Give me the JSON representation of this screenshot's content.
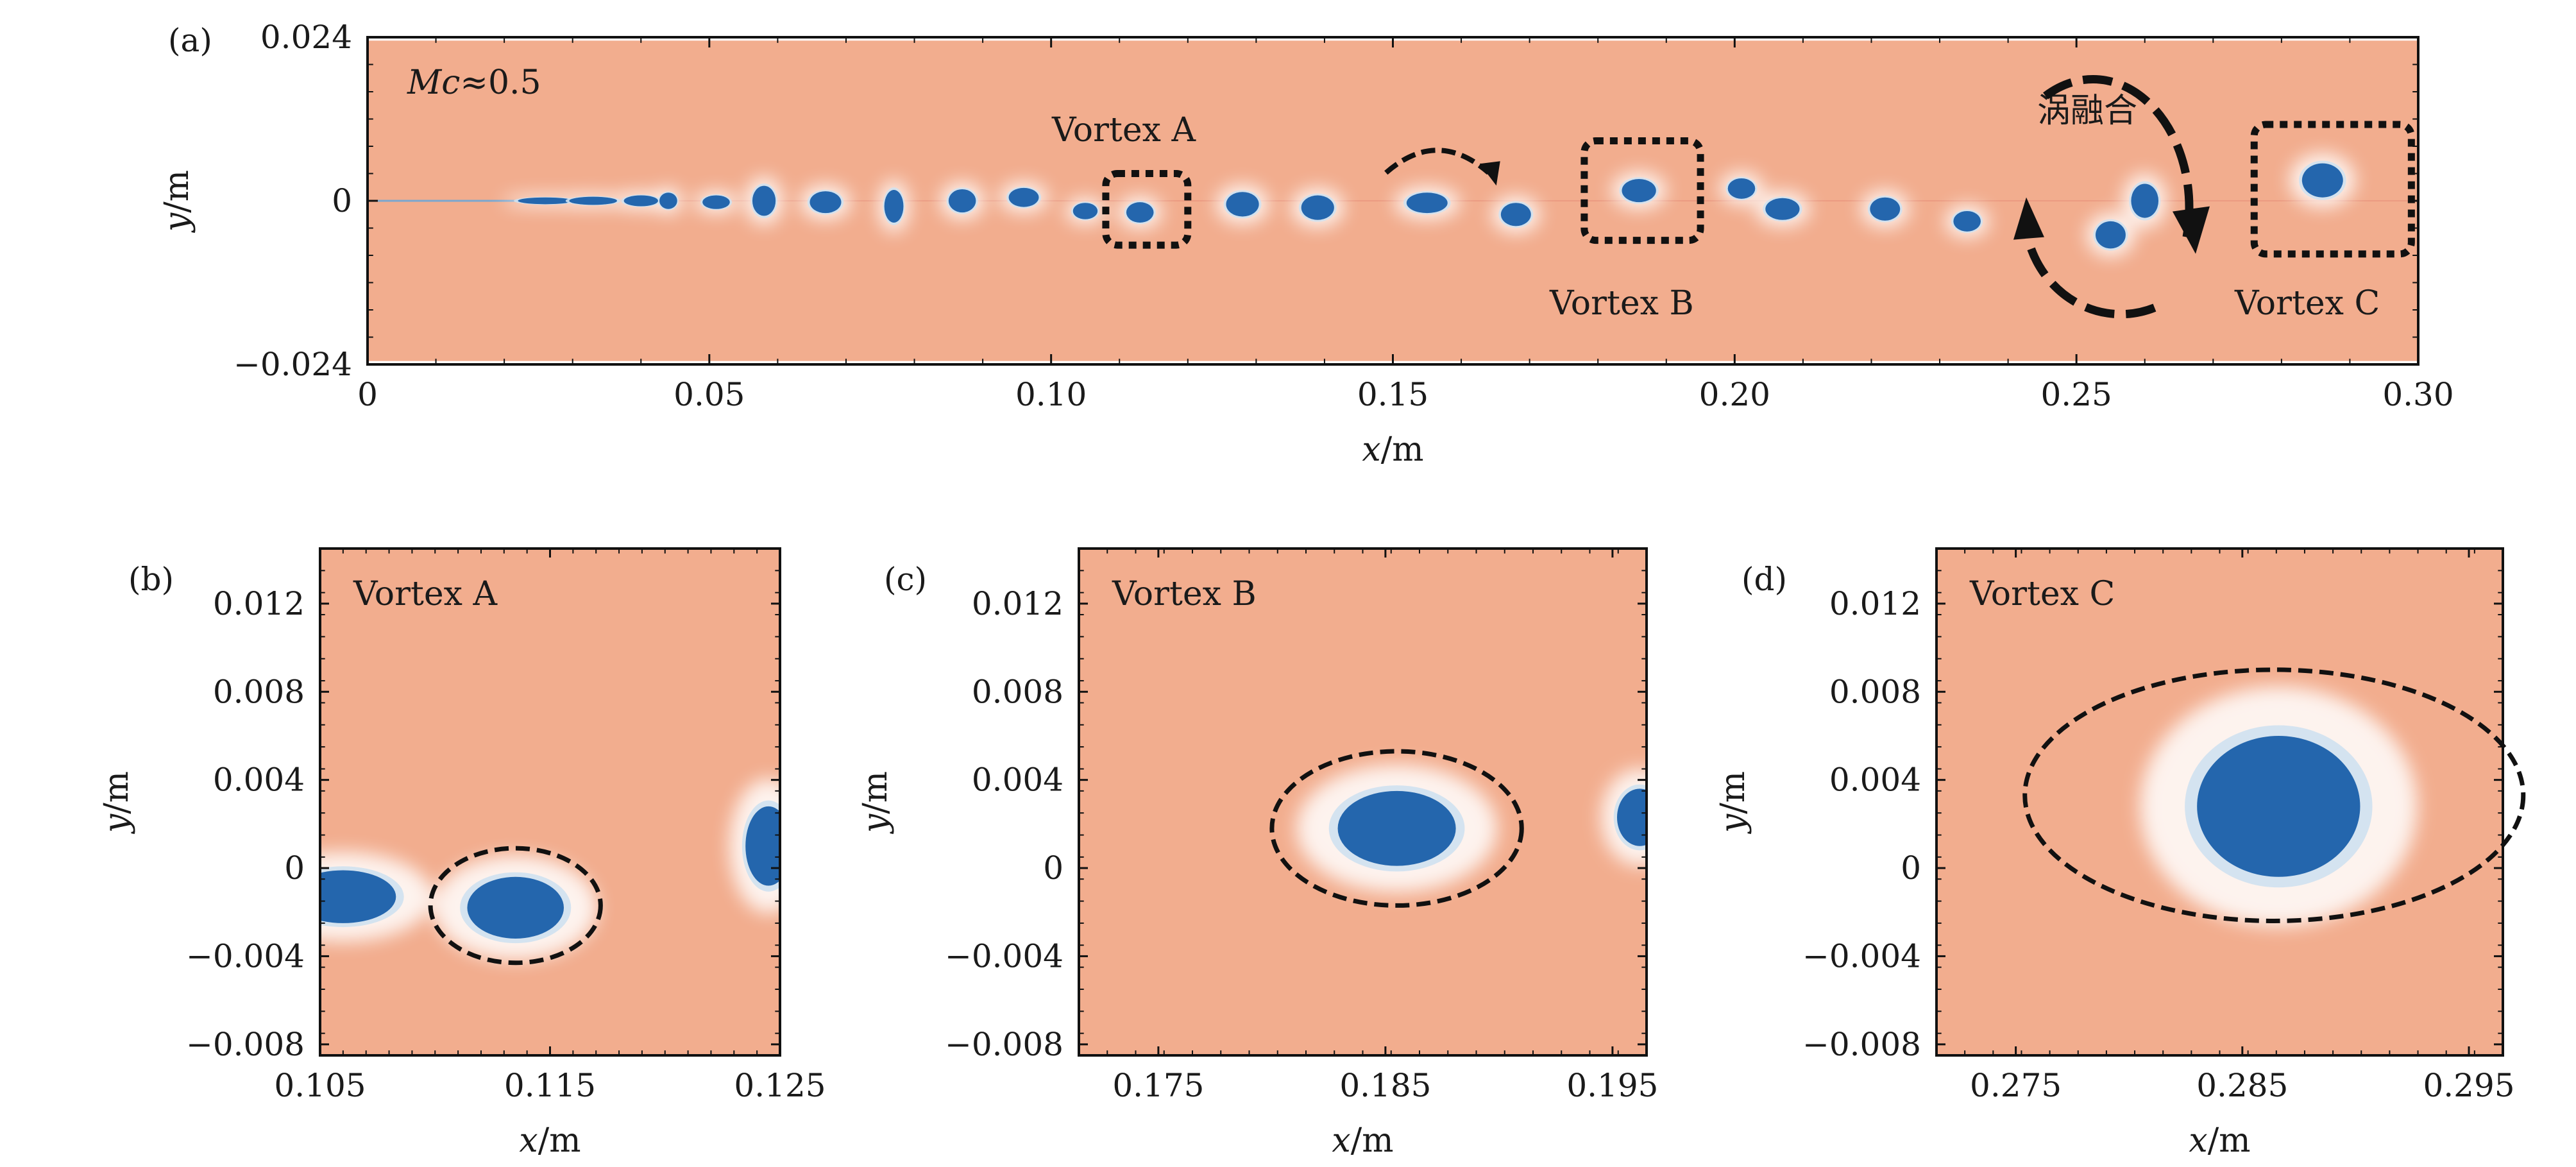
{
  "chart_data": [
    {
      "type": "heatmap",
      "panel": "(a)",
      "xlabel_var": "x",
      "xlabel_unit": "/m",
      "ylabel_var": "y",
      "ylabel_unit": "/m",
      "xlim": [
        0,
        0.3
      ],
      "ylim": [
        -0.024,
        0.024
      ],
      "xticks": [
        0,
        0.05,
        0.1,
        0.15,
        0.2,
        0.25,
        0.3
      ],
      "xtick_labels": [
        "0",
        "0.05",
        "0.10",
        "0.15",
        "0.20",
        "0.25",
        "0.30"
      ],
      "yticks": [
        -0.024,
        0,
        0.024
      ],
      "ytick_labels": [
        "−0.024",
        "0",
        "0.024"
      ],
      "mc_var": "Mc",
      "mc_value": "≈0.5",
      "annotations": [
        {
          "text": "Vortex A",
          "x": 0.113,
          "y": 0.0
        },
        {
          "text": "Vortex B",
          "x": 0.186,
          "y": 0.0015
        },
        {
          "text": "Vortex C",
          "x": 0.286,
          "y": 0.002
        },
        {
          "text": "涡融合",
          "x": 0.253,
          "y": -0.004
        }
      ],
      "background_color": "#f2ad8e",
      "vortex_color": "#2466ad",
      "vortex_cores": [
        {
          "x": 0.026,
          "y": 0.0,
          "rx": 0.004,
          "ry": 0.0005
        },
        {
          "x": 0.033,
          "y": 0.0,
          "rx": 0.0035,
          "ry": 0.0006
        },
        {
          "x": 0.04,
          "y": 0.0,
          "rx": 0.0025,
          "ry": 0.0008
        },
        {
          "x": 0.044,
          "y": 0.0,
          "rx": 0.0013,
          "ry": 0.0012
        },
        {
          "x": 0.051,
          "y": -0.0002,
          "rx": 0.002,
          "ry": 0.001
        },
        {
          "x": 0.058,
          "y": 0.0,
          "rx": 0.0017,
          "ry": 0.0022
        },
        {
          "x": 0.067,
          "y": -0.0002,
          "rx": 0.0023,
          "ry": 0.0016
        },
        {
          "x": 0.077,
          "y": -0.0008,
          "rx": 0.0014,
          "ry": 0.0024
        },
        {
          "x": 0.087,
          "y": 0.0,
          "rx": 0.002,
          "ry": 0.0017
        },
        {
          "x": 0.096,
          "y": 0.0005,
          "rx": 0.0022,
          "ry": 0.0014
        },
        {
          "x": 0.105,
          "y": -0.0015,
          "rx": 0.0018,
          "ry": 0.0012
        },
        {
          "x": 0.113,
          "y": -0.0017,
          "rx": 0.002,
          "ry": 0.0015
        },
        {
          "x": 0.128,
          "y": -0.0005,
          "rx": 0.0024,
          "ry": 0.0018
        },
        {
          "x": 0.139,
          "y": -0.001,
          "rx": 0.0024,
          "ry": 0.0018
        },
        {
          "x": 0.155,
          "y": -0.0003,
          "rx": 0.003,
          "ry": 0.0015
        },
        {
          "x": 0.168,
          "y": -0.002,
          "rx": 0.0022,
          "ry": 0.0017
        },
        {
          "x": 0.186,
          "y": 0.0015,
          "rx": 0.0025,
          "ry": 0.0017
        },
        {
          "x": 0.201,
          "y": 0.0018,
          "rx": 0.002,
          "ry": 0.0015
        },
        {
          "x": 0.207,
          "y": -0.0012,
          "rx": 0.0025,
          "ry": 0.0016
        },
        {
          "x": 0.222,
          "y": -0.0012,
          "rx": 0.0022,
          "ry": 0.0017
        },
        {
          "x": 0.234,
          "y": -0.003,
          "rx": 0.002,
          "ry": 0.0015
        },
        {
          "x": 0.255,
          "y": -0.005,
          "rx": 0.0022,
          "ry": 0.002
        },
        {
          "x": 0.26,
          "y": 0.0,
          "rx": 0.002,
          "ry": 0.0025
        },
        {
          "x": 0.286,
          "y": 0.003,
          "rx": 0.003,
          "ry": 0.0025
        }
      ],
      "boxes": [
        {
          "x0": 0.108,
          "x1": 0.12,
          "y0": -0.0065,
          "y1": 0.004
        },
        {
          "x0": 0.178,
          "x1": 0.195,
          "y0": -0.0058,
          "y1": 0.0088
        },
        {
          "x0": 0.276,
          "x1": 0.299,
          "y0": -0.0078,
          "y1": 0.0112
        }
      ]
    },
    {
      "type": "heatmap",
      "panel": "(b)",
      "title": "Vortex A",
      "xlabel_var": "x",
      "xlabel_unit": "/m",
      "ylabel_var": "y",
      "ylabel_unit": "/m",
      "xlim": [
        0.105,
        0.125
      ],
      "ylim": [
        -0.0085,
        0.0145
      ],
      "xticks": [
        0.105,
        0.115,
        0.125
      ],
      "xtick_labels": [
        "0.105",
        "0.115",
        "0.125"
      ],
      "yticks": [
        -0.008,
        -0.004,
        0,
        0.004,
        0.008,
        0.012
      ],
      "ytick_labels": [
        "−0.008",
        "−0.004",
        "0",
        "0.004",
        "0.008",
        "0.012"
      ],
      "vortex_cores": [
        {
          "x": 0.1135,
          "y": -0.0018,
          "rx": 0.0021,
          "ry": 0.0014
        },
        {
          "x": 0.106,
          "y": -0.0013,
          "rx": 0.0023,
          "ry": 0.0012
        },
        {
          "x": 0.1245,
          "y": 0.001,
          "rx": 0.001,
          "ry": 0.0018
        }
      ],
      "dashed_ellipse": {
        "cx": 0.1135,
        "cy": -0.0017,
        "rx": 0.0037,
        "ry": 0.0026
      }
    },
    {
      "type": "heatmap",
      "panel": "(c)",
      "title": "Vortex B",
      "xlabel_var": "x",
      "xlabel_unit": "/m",
      "ylabel_var": "y",
      "ylabel_unit": "/m",
      "xlim": [
        0.1715,
        0.1965
      ],
      "ylim": [
        -0.0085,
        0.0145
      ],
      "xticks": [
        0.175,
        0.185,
        0.195
      ],
      "xtick_labels": [
        "0.175",
        "0.185",
        "0.195"
      ],
      "yticks": [
        -0.008,
        -0.004,
        0,
        0.004,
        0.008,
        0.012
      ],
      "ytick_labels": [
        "−0.008",
        "−0.004",
        "0",
        "0.004",
        "0.008",
        "0.012"
      ],
      "vortex_cores": [
        {
          "x": 0.1855,
          "y": 0.0018,
          "rx": 0.0026,
          "ry": 0.0017
        },
        {
          "x": 0.1962,
          "y": 0.0023,
          "rx": 0.001,
          "ry": 0.0013
        }
      ],
      "dashed_ellipse": {
        "cx": 0.1855,
        "cy": 0.0018,
        "rx": 0.0055,
        "ry": 0.0035
      }
    },
    {
      "type": "heatmap",
      "panel": "(d)",
      "title": "Vortex C",
      "xlabel_var": "x",
      "xlabel_unit": "/m",
      "ylabel_var": "y",
      "ylabel_unit": "/m",
      "xlim": [
        0.2715,
        0.2965
      ],
      "ylim": [
        -0.0085,
        0.0145
      ],
      "xticks": [
        0.275,
        0.285,
        0.295
      ],
      "xtick_labels": [
        "0.275",
        "0.285",
        "0.295"
      ],
      "yticks": [
        -0.008,
        -0.004,
        0,
        0.004,
        0.008,
        0.012
      ],
      "ytick_labels": [
        "−0.008",
        "−0.004",
        "0",
        "0.004",
        "0.008",
        "0.012"
      ],
      "vortex_cores": [
        {
          "x": 0.2866,
          "y": 0.0028,
          "rx": 0.0036,
          "ry": 0.0032
        }
      ],
      "dashed_ellipse": {
        "cx": 0.2864,
        "cy": 0.0033,
        "rx": 0.011,
        "ry": 0.0057
      }
    }
  ]
}
